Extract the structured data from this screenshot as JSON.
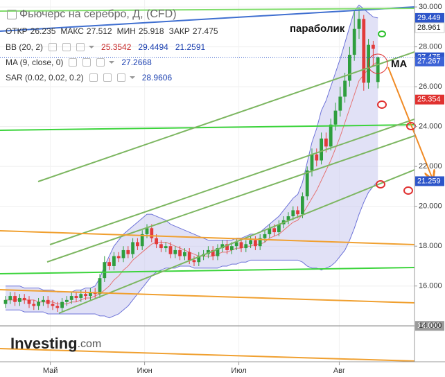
{
  "chart_data": {
    "type": "candlestick",
    "header": {
      "title": "Фьючерс на серебро, Д, (CFD)",
      "ohlc": [
        {
          "label": "ОТКР",
          "value": 26.235
        },
        {
          "label": "МАКС",
          "value": 27.512
        },
        {
          "label": "МИН",
          "value": 25.918
        },
        {
          "label": "ЗАКР",
          "value": 27.475
        }
      ]
    },
    "indicators": [
      {
        "name": "BB (20, 2)",
        "values": [
          25.3542,
          29.4494,
          21.2591
        ],
        "colors": [
          "#c62828",
          "#1a3fb0",
          "#1a3fb0"
        ]
      },
      {
        "name": "MA (9, close, 0)",
        "values": [
          27.2668
        ],
        "colors": [
          "#1a3fb0"
        ]
      },
      {
        "name": "SAR (0.02, 0.02, 0.2)",
        "values": [
          28.9606
        ],
        "colors": [
          "#1a3fb0"
        ]
      }
    ],
    "annotations": [
      "параболик",
      "MA"
    ],
    "watermark": {
      "brand": "Investing",
      "suffix": ".com"
    },
    "ylim": [
      12.2,
      30.35
    ],
    "yticks": [
      {
        "value": 14,
        "label": "14.000"
      },
      {
        "value": 16,
        "label": "16.000"
      },
      {
        "value": 18,
        "label": "18.000"
      },
      {
        "value": 20,
        "label": "20.000"
      },
      {
        "value": 22,
        "label": "22.000"
      },
      {
        "value": 24,
        "label": "24.000"
      },
      {
        "value": 26,
        "label": "26.000"
      },
      {
        "value": 28,
        "label": "28.000"
      },
      {
        "value": 30,
        "label": "30.000"
      }
    ],
    "xticks": [
      {
        "value": 9.5,
        "label": "Май"
      },
      {
        "value": 29.5,
        "label": "Июн"
      },
      {
        "value": 49.5,
        "label": "Июл"
      },
      {
        "value": 70.8,
        "label": "Авг"
      }
    ],
    "grid": true,
    "up_color": "#2e9e3e",
    "down_color": "#e23b3b",
    "open": [
      15.1,
      15.3,
      15.5,
      15.2,
      15.4,
      15.3,
      15.1,
      15.0,
      15.2,
      15.3,
      15.1,
      15.0,
      14.9,
      15.2,
      15.3,
      15.5,
      15.4,
      15.6,
      15.5,
      15.7,
      15.6,
      16.4,
      17.2,
      17.0,
      17.5,
      17.4,
      17.8,
      17.6,
      18.2,
      18.0,
      18.6,
      18.9,
      18.4,
      18.1,
      17.9,
      18.0,
      17.6,
      17.8,
      17.5,
      17.7,
      17.3,
      17.2,
      17.5,
      17.6,
      17.8,
      17.5,
      17.9,
      18.1,
      17.8,
      18.0,
      18.2,
      17.9,
      18.1,
      18.3,
      18.0,
      18.4,
      18.6,
      18.9,
      18.7,
      19.1,
      19.3,
      19.5,
      19.8,
      19.6,
      20.5,
      21.8,
      22.6,
      22.3,
      23.4,
      23.0,
      24.1,
      24.8,
      25.5,
      26.3,
      27.6,
      28.9,
      29.4,
      26.2,
      28.1,
      26.235
    ],
    "high": [
      15.5,
      15.7,
      15.7,
      15.6,
      15.6,
      15.5,
      15.3,
      15.4,
      15.5,
      15.5,
      15.3,
      15.2,
      15.4,
      15.5,
      15.7,
      15.7,
      15.8,
      15.8,
      15.9,
      15.9,
      16.6,
      17.5,
      17.4,
      17.7,
      17.7,
      18.0,
      18.0,
      18.4,
      18.4,
      18.8,
      19.1,
      19.1,
      18.6,
      18.3,
      18.2,
      18.2,
      18.0,
      18.0,
      17.9,
      17.9,
      17.5,
      17.7,
      17.8,
      18.0,
      18.0,
      18.1,
      18.3,
      18.3,
      18.2,
      18.4,
      18.4,
      18.3,
      18.5,
      18.5,
      18.6,
      18.8,
      19.1,
      19.1,
      19.3,
      19.5,
      19.7,
      20.0,
      20.0,
      20.7,
      22.0,
      22.9,
      22.9,
      23.7,
      23.7,
      24.4,
      25.2,
      26.0,
      26.7,
      28.0,
      29.8,
      30.0,
      29.6,
      28.4,
      28.3,
      27.512
    ],
    "low": [
      14.9,
      15.1,
      15.0,
      15.0,
      15.1,
      14.9,
      14.8,
      14.8,
      15.0,
      14.9,
      14.8,
      14.7,
      14.7,
      15.0,
      15.1,
      15.2,
      15.2,
      15.3,
      15.3,
      15.4,
      15.4,
      16.2,
      16.8,
      16.8,
      17.2,
      17.2,
      17.4,
      17.4,
      17.8,
      17.8,
      18.4,
      18.2,
      17.9,
      17.7,
      17.7,
      17.4,
      17.4,
      17.3,
      17.3,
      17.1,
      17.0,
      17.0,
      17.3,
      17.4,
      17.3,
      17.3,
      17.7,
      17.6,
      17.6,
      17.8,
      17.7,
      17.7,
      17.9,
      17.8,
      17.8,
      18.2,
      18.4,
      18.5,
      18.5,
      18.9,
      19.1,
      19.3,
      19.4,
      19.4,
      20.3,
      21.5,
      22.0,
      22.1,
      22.7,
      22.8,
      23.8,
      24.5,
      25.2,
      26.0,
      27.3,
      28.4,
      25.8,
      25.9,
      27.0,
      25.918
    ],
    "close": [
      15.3,
      15.5,
      15.2,
      15.4,
      15.3,
      15.1,
      15.0,
      15.2,
      15.3,
      15.1,
      15.0,
      14.9,
      15.2,
      15.3,
      15.5,
      15.4,
      15.6,
      15.5,
      15.7,
      15.6,
      16.4,
      17.2,
      17.0,
      17.5,
      17.4,
      17.8,
      17.6,
      18.2,
      18.0,
      18.6,
      18.9,
      18.4,
      18.1,
      17.9,
      18.0,
      17.6,
      17.8,
      17.5,
      17.7,
      17.3,
      17.2,
      17.5,
      17.6,
      17.8,
      17.5,
      17.9,
      18.1,
      17.8,
      18.0,
      18.2,
      17.9,
      18.1,
      18.3,
      18.0,
      18.4,
      18.6,
      18.9,
      18.7,
      19.1,
      19.3,
      19.5,
      19.8,
      19.6,
      20.5,
      21.8,
      22.6,
      22.3,
      23.4,
      23.0,
      24.1,
      24.8,
      25.5,
      26.3,
      27.6,
      28.9,
      29.4,
      26.2,
      28.1,
      27.9,
      27.475
    ],
    "overlays": [
      {
        "color": "#6c72d8",
        "values": [
          16.0,
          16.0,
          16.0,
          16.0,
          15.9,
          15.9,
          15.9,
          15.9,
          15.8,
          15.8,
          15.8,
          15.7,
          15.7,
          15.7,
          15.7,
          15.8,
          15.8,
          15.9,
          15.9,
          16.0,
          16.4,
          17.0,
          17.5,
          18.0,
          18.3,
          18.6,
          18.8,
          19.0,
          19.2,
          19.4,
          19.6,
          19.6,
          19.5,
          19.4,
          19.3,
          19.1,
          19.0,
          18.9,
          18.8,
          18.7,
          18.6,
          18.5,
          18.4,
          18.3,
          18.3,
          18.3,
          18.3,
          18.3,
          18.3,
          18.4,
          18.4,
          18.5,
          18.6,
          18.6,
          18.7,
          18.9,
          19.1,
          19.3,
          19.5,
          19.8,
          20.1,
          20.4,
          20.6,
          21.2,
          22.2,
          23.2,
          23.9,
          24.8,
          25.3,
          26.0,
          26.7,
          27.4,
          28.2,
          29.0,
          29.8,
          30.1,
          29.9,
          29.7,
          29.5,
          29.449
        ]
      },
      {
        "color": "#6c72d8",
        "values": [
          14.8,
          14.8,
          14.8,
          14.8,
          14.7,
          14.7,
          14.7,
          14.7,
          14.7,
          14.6,
          14.6,
          14.6,
          14.6,
          14.6,
          14.6,
          14.6,
          14.6,
          14.6,
          14.6,
          14.6,
          14.5,
          14.5,
          14.4,
          14.5,
          14.6,
          14.8,
          15.0,
          15.3,
          15.6,
          15.9,
          16.2,
          16.5,
          16.7,
          16.8,
          16.9,
          16.9,
          16.9,
          17.0,
          17.0,
          17.0,
          16.9,
          16.9,
          16.9,
          16.9,
          16.9,
          16.9,
          17.0,
          17.0,
          17.1,
          17.1,
          17.2,
          17.2,
          17.3,
          17.3,
          17.3,
          17.3,
          17.3,
          17.3,
          17.3,
          17.3,
          17.3,
          17.3,
          17.3,
          17.2,
          17.0,
          16.9,
          16.9,
          16.8,
          16.9,
          17.0,
          17.2,
          17.5,
          17.8,
          18.3,
          18.9,
          19.6,
          20.2,
          20.7,
          21.0,
          21.259
        ]
      },
      {
        "color": "#e57373",
        "values": [
          15.3,
          15.3,
          15.3,
          15.3,
          15.3,
          15.3,
          15.3,
          15.2,
          15.2,
          15.2,
          15.2,
          15.1,
          15.1,
          15.1,
          15.2,
          15.2,
          15.3,
          15.4,
          15.4,
          15.5,
          15.6,
          15.8,
          16.0,
          16.3,
          16.5,
          16.8,
          17.0,
          17.3,
          17.5,
          17.7,
          17.9,
          18.1,
          18.2,
          18.2,
          18.2,
          18.1,
          18.0,
          17.9,
          17.8,
          17.7,
          17.6,
          17.5,
          17.5,
          17.5,
          17.5,
          17.6,
          17.7,
          17.7,
          17.8,
          17.9,
          17.9,
          18.0,
          18.0,
          18.1,
          18.1,
          18.2,
          18.4,
          18.5,
          18.6,
          18.8,
          19.0,
          19.2,
          19.3,
          19.6,
          20.0,
          20.4,
          20.8,
          21.3,
          21.8,
          22.3,
          22.9,
          23.5,
          24.2,
          24.9,
          25.6,
          26.3,
          26.6,
          26.9,
          27.1,
          27.267
        ]
      }
    ],
    "price_tags": [
      {
        "value": 29.449,
        "bg": "#2d55c9",
        "fg": "#ffffff"
      },
      {
        "value": 28.961,
        "bg": "#ffffff",
        "fg": "#222222"
      },
      {
        "value": 27.475,
        "bg": "#2d55c9",
        "fg": "#ffffff"
      },
      {
        "value": 27.267,
        "bg": "#3d63d6",
        "fg": "#ffffff"
      },
      {
        "value": 25.354,
        "bg": "#e0312f",
        "fg": "#ffffff"
      },
      {
        "value": 21.259,
        "bg": "#2d55c9",
        "fg": "#ffffff"
      },
      {
        "value": 14,
        "label": "14.000",
        "bg": "#9a9a9a",
        "fg": "#ffffff"
      }
    ]
  }
}
